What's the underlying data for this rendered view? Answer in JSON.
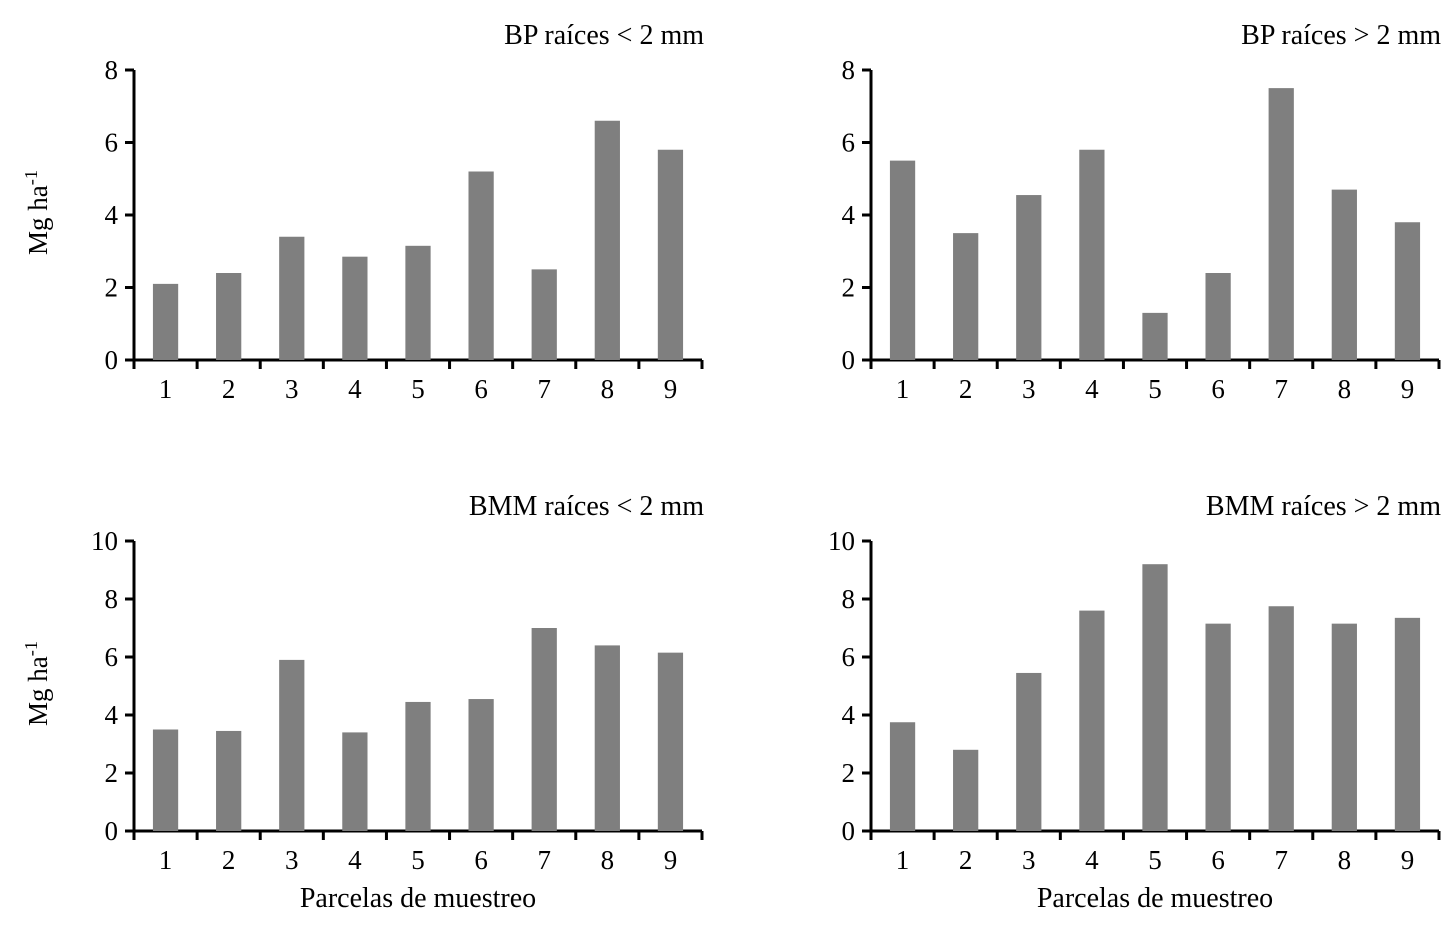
{
  "style": {
    "bar_color": "#7f7f7f",
    "axis_color": "#000000",
    "background": "#ffffff"
  },
  "labels": {
    "ylabel_base": "Mg ha",
    "ylabel_sup": "-1",
    "xlabel_bottom": "Parcelas de muestreo"
  },
  "chart_data": [
    {
      "type": "bar",
      "title": "BP raíces < 2 mm",
      "categories": [
        "1",
        "2",
        "3",
        "4",
        "5",
        "6",
        "7",
        "8",
        "9"
      ],
      "values": [
        2.1,
        2.4,
        3.4,
        2.85,
        3.15,
        5.2,
        2.5,
        6.6,
        5.8
      ],
      "ylim": [
        0,
        8
      ],
      "ytick_step": 2,
      "ylabel": "Mg ha-1",
      "xlabel": ""
    },
    {
      "type": "bar",
      "title": "BP  raíces > 2 mm",
      "categories": [
        "1",
        "2",
        "3",
        "4",
        "5",
        "6",
        "7",
        "8",
        "9"
      ],
      "values": [
        5.5,
        3.5,
        4.55,
        5.8,
        1.3,
        2.4,
        7.5,
        4.7,
        3.8
      ],
      "ylim": [
        0,
        8
      ],
      "ytick_step": 2,
      "ylabel": "",
      "xlabel": ""
    },
    {
      "type": "bar",
      "title": "BMM raíces < 2 mm",
      "categories": [
        "1",
        "2",
        "3",
        "4",
        "5",
        "6",
        "7",
        "8",
        "9"
      ],
      "values": [
        3.5,
        3.45,
        5.9,
        3.4,
        4.45,
        4.55,
        7.0,
        6.4,
        6.15
      ],
      "ylim": [
        0,
        10
      ],
      "ytick_step": 2,
      "ylabel": "Mg ha-1",
      "xlabel": "Parcelas de muestreo"
    },
    {
      "type": "bar",
      "title": "BMM raíces > 2 mm",
      "categories": [
        "1",
        "2",
        "3",
        "4",
        "5",
        "6",
        "7",
        "8",
        "9"
      ],
      "values": [
        3.75,
        2.8,
        5.45,
        7.6,
        9.2,
        7.15,
        7.75,
        7.15,
        7.35
      ],
      "ylim": [
        0,
        10
      ],
      "ytick_step": 2,
      "ylabel": "",
      "xlabel": "Parcelas de muestreo"
    }
  ]
}
